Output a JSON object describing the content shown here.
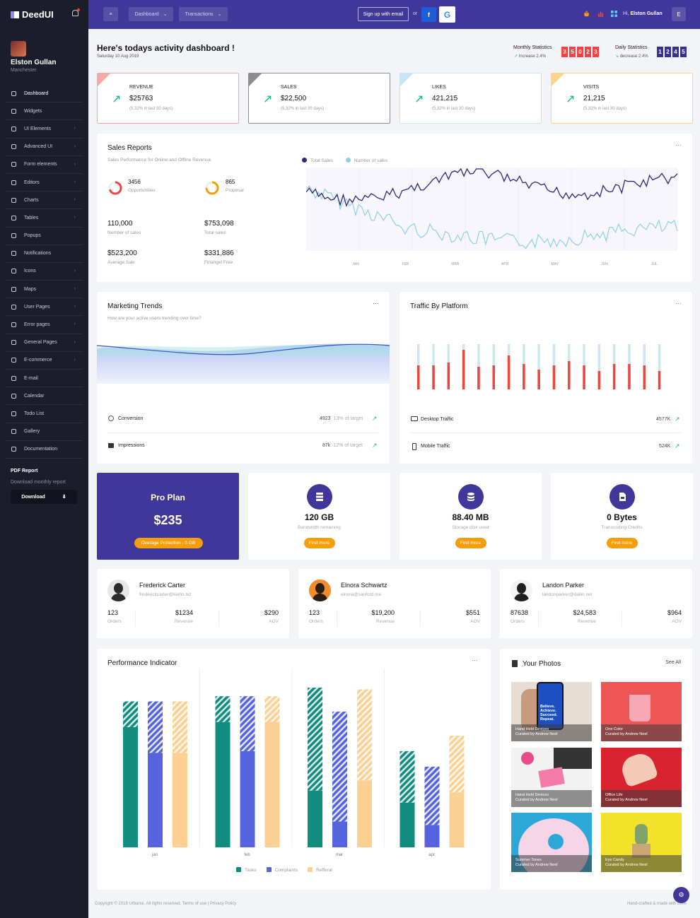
{
  "brand": {
    "name": "DeedUI"
  },
  "user": {
    "name": "Elston Gullan",
    "location": "Manchester",
    "initial": "E"
  },
  "sidebar": {
    "items": [
      {
        "label": "Dashboard",
        "chev": ""
      },
      {
        "label": "Widgets",
        "chev": ""
      },
      {
        "label": "UI Elements",
        "chev": "›"
      },
      {
        "label": "Advanced UI",
        "chev": "›"
      },
      {
        "label": "Form elements",
        "chev": "›"
      },
      {
        "label": "Editors",
        "chev": "›"
      },
      {
        "label": "Charts",
        "chev": "›"
      },
      {
        "label": "Tables",
        "chev": "›"
      },
      {
        "label": "Popups",
        "chev": ""
      },
      {
        "label": "Notifications",
        "chev": ""
      },
      {
        "label": "Icons",
        "chev": "›"
      },
      {
        "label": "Maps",
        "chev": "›"
      },
      {
        "label": "User Pages",
        "chev": "›"
      },
      {
        "label": "Error pages",
        "chev": "›"
      },
      {
        "label": "General Pages",
        "chev": "›"
      },
      {
        "label": "E-commerce",
        "chev": "›"
      },
      {
        "label": "E-mail",
        "chev": ""
      },
      {
        "label": "Calendar",
        "chev": ""
      },
      {
        "label": "Todo List",
        "chev": ""
      },
      {
        "label": "Gallery",
        "chev": ""
      },
      {
        "label": "Documentation",
        "chev": ""
      }
    ],
    "pdf_title": "PDF Report",
    "pdf_sub": "Download monthly report",
    "download_label": "Download"
  },
  "topbar": {
    "menu_icon": "≡",
    "dashboard_label": "Dashboard",
    "transactions_label": "Transactions",
    "signup_label": "Sign up with email",
    "or_label": "or",
    "fb_label": "f",
    "google_label": "G",
    "hi_label": "Hi,",
    "user_name": "Elston Gullan"
  },
  "header": {
    "title": "Here's todays activity dashboard !",
    "date": "Saturday 10 Aug 2019",
    "monthly": {
      "label": "Monthly Statistics",
      "sub": "Increase 2.4%",
      "digits": [
        "3",
        "5",
        "0",
        "2",
        "3"
      ],
      "color": "#ef4444"
    },
    "daily": {
      "label": "Daily Statistics",
      "sub": "decrease 2.4%",
      "digits": [
        "1",
        "2",
        "4",
        "5"
      ],
      "color": "#3b2f8f"
    }
  },
  "stats": [
    {
      "label": "REVENUE",
      "value": "$25763",
      "sub": "(5.32% in last 30 days)",
      "color": "#f7a8a8"
    },
    {
      "label": "SALES",
      "value": "$22,500",
      "sub": "(5.32% in last 30 days)",
      "color": "#8d8d8d"
    },
    {
      "label": "LIKES",
      "value": "421,215",
      "sub": "(5.32% in last 30 days)",
      "color": "#c7e6f5"
    },
    {
      "label": "VISITS",
      "value": "21,215",
      "sub": "(5.32% in last 30 days)",
      "color": "#fbd58e"
    }
  ],
  "sales": {
    "title": "Sales Reports",
    "subtitle": "Sales Performance for Online and Offline Revenue",
    "opportunities": {
      "value": "3456",
      "label": "Opportunities",
      "fraction": 0.7
    },
    "proposal": {
      "value": "865",
      "label": "Proposal",
      "fraction": 0.75
    },
    "metrics": [
      {
        "value": "110,000",
        "label": "Number of sales"
      },
      {
        "value": "$753,098",
        "label": "Total sales"
      },
      {
        "value": "$523,200",
        "label": "Average Sale"
      },
      {
        "value": "$331,886",
        "label": "Finangel Free"
      }
    ],
    "dots": "···"
  },
  "marketing": {
    "title": "Marketing Trends",
    "subtitle": "How are your active users trending over time?",
    "dots": "···",
    "rows": [
      {
        "label": "Conversion",
        "value": "4923",
        "target": "13% of target"
      },
      {
        "label": "Impressions",
        "value": "87k",
        "target": "12% of target"
      }
    ]
  },
  "traffic": {
    "title": "Traffic By Platform",
    "dots": "···",
    "rows": [
      {
        "label": "Desktop Traffic",
        "value": "4577K"
      },
      {
        "label": "Mobile Traffic",
        "value": "524K"
      }
    ]
  },
  "plan": {
    "title": "Pro Plan",
    "price": "$235",
    "badge": "Overage Protection - 0 GB"
  },
  "features": [
    {
      "value": "120 GB",
      "label": "Bandwidth remaining",
      "button": "Find more",
      "icon": "server-icon"
    },
    {
      "value": "88.40 MB",
      "label": "Storage disk used",
      "button": "Find more",
      "icon": "database-icon"
    },
    {
      "value": "0 Bytes",
      "label": "Transcoding Credits",
      "button": "Find more",
      "icon": "file-icon"
    }
  ],
  "people": [
    {
      "name": "Frederick Carter",
      "email": "frederickcarter@kiehn.biz",
      "orders": "123",
      "revenue": "$1234",
      "aov": "$290"
    },
    {
      "name": "Elnora Schwartz",
      "email": "elnora@sanford.me",
      "orders": "123",
      "revenue": "$19,200",
      "aov": "$551"
    },
    {
      "name": "Landon Parker",
      "email": "landonparker@dallin.net",
      "orders": "87638",
      "revenue": "$24,583",
      "aov": "$964"
    }
  ],
  "people_labels": {
    "orders": "Orders",
    "revenue": "Revenue",
    "aov": "AOV"
  },
  "performance": {
    "title": "Performance Indicator",
    "dots": "···",
    "legend": [
      "Tasks",
      "Complaints",
      "Refferal"
    ]
  },
  "photos": {
    "title": "Your Photos",
    "see_all": "See All",
    "items": [
      {
        "title": "Hand Held Devices",
        "curator": "Curated by Andrew Neel",
        "phone_text": "Believe. Achieve. Succeed. Repeat."
      },
      {
        "title": "One Color",
        "curator": "Curated by Andrew Neel"
      },
      {
        "title": "Hand Held Devices",
        "curator": "Curated by Andrew Neel"
      },
      {
        "title": "Office Life",
        "curator": "Curated by Andrew Neel"
      },
      {
        "title": "Summer Tones",
        "curator": "Curated by Andrew Neel"
      },
      {
        "title": "Eye Candy",
        "curator": "Curated by Andrew Neel"
      }
    ]
  },
  "footer": {
    "copyright": "Copyright © 2019 Urbanui. All rights reserved. Terms of use | Privacy Policy",
    "right": "Hand-crafted & made with Love"
  },
  "chart_data": [
    {
      "type": "line",
      "categories": [
        "JAN",
        "FEB",
        "MAR",
        "APR",
        "MAY",
        "JUN",
        "JUL"
      ],
      "series": [
        {
          "name": "Total Sales",
          "color": "#2d2a7a"
        },
        {
          "name": "Number of sales",
          "color": "#8ed1e0"
        }
      ]
    },
    {
      "type": "bar",
      "categories": [
        "jan",
        "feb",
        "mar",
        "apr"
      ],
      "series": [
        {
          "name": "Tasks",
          "color": "#128c7e",
          "solid": [
            70,
            73,
            33,
            26
          ],
          "hatch": [
            85,
            88,
            93,
            56
          ]
        },
        {
          "name": "Complaints",
          "color": "#5563de",
          "solid": [
            55,
            56,
            15,
            13
          ],
          "hatch": [
            85,
            88,
            79,
            47
          ]
        },
        {
          "name": "Refferal",
          "color": "#fccf93",
          "solid": [
            55,
            73,
            39,
            32
          ],
          "hatch": [
            85,
            88,
            92,
            65
          ]
        }
      ],
      "ylim": [
        0,
        100
      ]
    }
  ]
}
